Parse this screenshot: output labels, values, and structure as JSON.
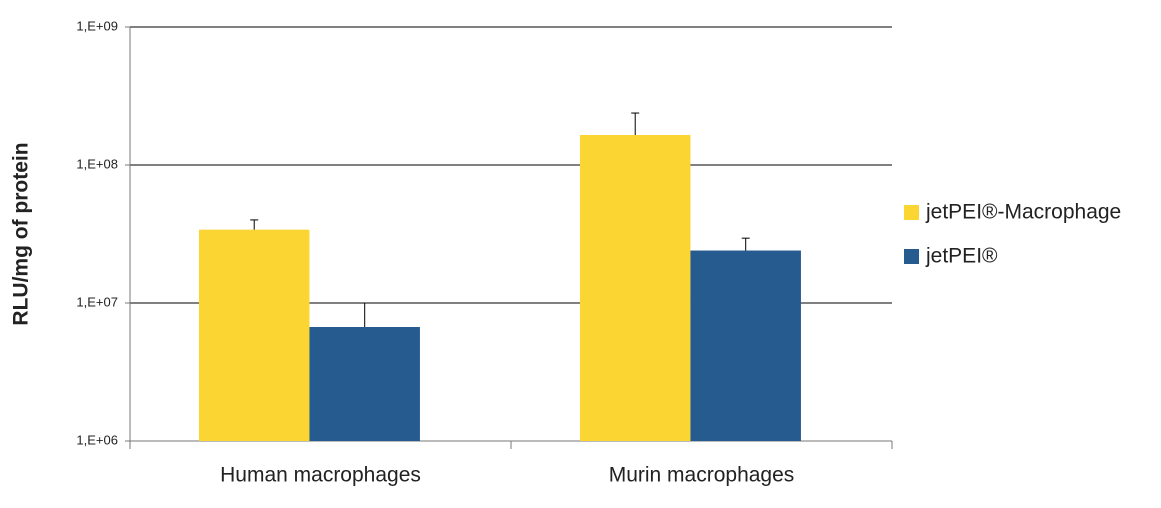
{
  "chart_data": {
    "type": "bar",
    "y_label": "RLU/mg of protein",
    "y_scale": "log",
    "categories": [
      "Human macrophages",
      "Murin macrophages"
    ],
    "series": [
      {
        "name": "jetPEI®-Macrophage",
        "color": "#fbd532",
        "values": [
          34000000,
          165000000
        ],
        "errors": [
          6000000,
          73000000
        ]
      },
      {
        "name": "jetPEI®",
        "color": "#255b8f",
        "values": [
          6700000,
          24000000
        ],
        "errors": [
          3300000,
          5500000
        ]
      }
    ],
    "ylim": [
      1000000,
      1000000000
    ],
    "yticks": [
      {
        "value": 1000000,
        "label": "1,E+06"
      },
      {
        "value": 10000000,
        "label": "1,E+07"
      },
      {
        "value": 100000000,
        "label": "1,E+08"
      },
      {
        "value": 1000000000,
        "label": "1,E+09"
      }
    ],
    "grid": true,
    "legend": "right"
  }
}
